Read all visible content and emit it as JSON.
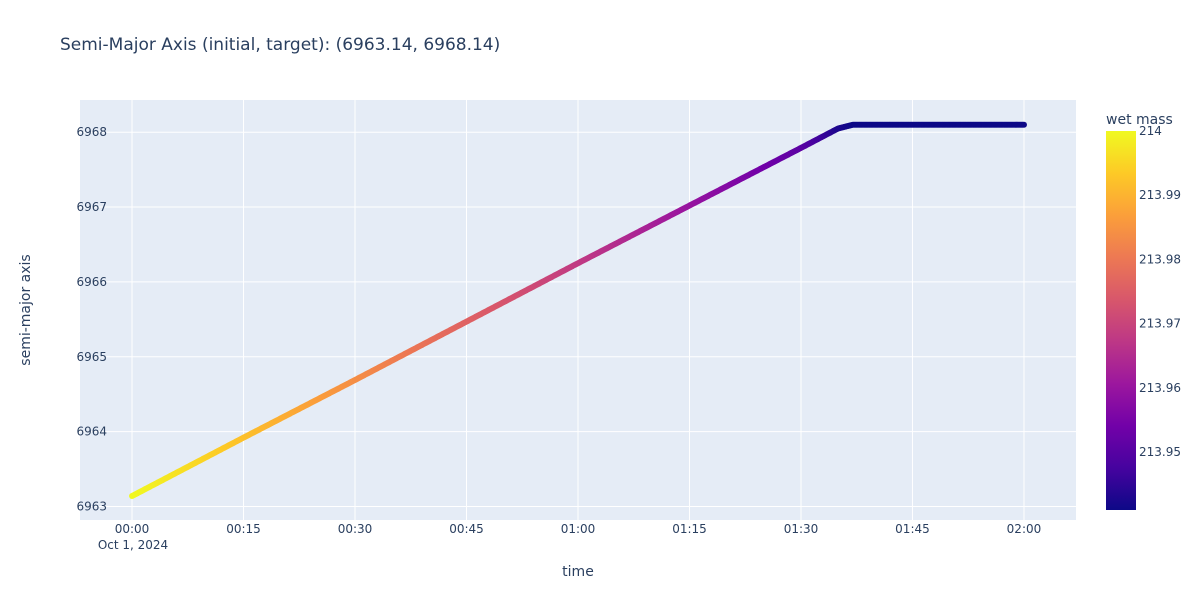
{
  "chart_data": {
    "type": "scatter",
    "title": "Semi-Major Axis (initial, target): (6963.14, 6968.14)",
    "xlabel": "time",
    "ylabel": "semi-major axis",
    "x_tick_labels": [
      "00:00",
      "00:15",
      "00:30",
      "00:45",
      "01:00",
      "01:15",
      "01:30",
      "01:45",
      "02:00"
    ],
    "x_date_label": "Oct 1, 2024",
    "x_tick_minutes": [
      0,
      15,
      30,
      45,
      60,
      75,
      90,
      105,
      120
    ],
    "xlim": [
      "2024-09-30T23:53:00",
      "2024-10-01T02:07:00"
    ],
    "y_ticks": [
      6963,
      6964,
      6965,
      6966,
      6967,
      6968
    ],
    "ylim": [
      6962.82,
      6968.43
    ],
    "colorbar": {
      "title": "wet mass",
      "colorscale": "plasma",
      "range": [
        213.941,
        214.0
      ],
      "ticks": [
        214,
        213.99,
        213.98,
        213.97,
        213.96,
        213.95
      ],
      "tick_labels": [
        "214",
        "213.99",
        "213.98",
        "213.97",
        "213.96",
        "213.95"
      ]
    },
    "series": [
      {
        "x_start": "2024-10-01T00:00:00",
        "x_end": "2024-10-01T02:00:00",
        "points": [
          {
            "x": "2024-10-01T00:00:00",
            "y": 6963.14,
            "wet_mass": 214.0
          },
          {
            "x": "2024-10-01T00:15:00",
            "y": 6963.92,
            "wet_mass": 213.992
          },
          {
            "x": "2024-10-01T00:30:00",
            "y": 6964.69,
            "wet_mass": 213.984
          },
          {
            "x": "2024-10-01T00:45:00",
            "y": 6965.47,
            "wet_mass": 213.976
          },
          {
            "x": "2024-10-01T01:00:00",
            "y": 6966.25,
            "wet_mass": 213.968
          },
          {
            "x": "2024-10-01T01:15:00",
            "y": 6967.02,
            "wet_mass": 213.96
          },
          {
            "x": "2024-10-01T01:30:00",
            "y": 6967.79,
            "wet_mass": 213.951
          },
          {
            "x": "2024-10-01T01:35:00",
            "y": 6968.05,
            "wet_mass": 213.943
          },
          {
            "x": "2024-10-01T01:37:00",
            "y": 6968.1,
            "wet_mass": 213.941
          },
          {
            "x": "2024-10-01T02:00:00",
            "y": 6968.1,
            "wet_mass": 213.941
          }
        ]
      }
    ]
  }
}
